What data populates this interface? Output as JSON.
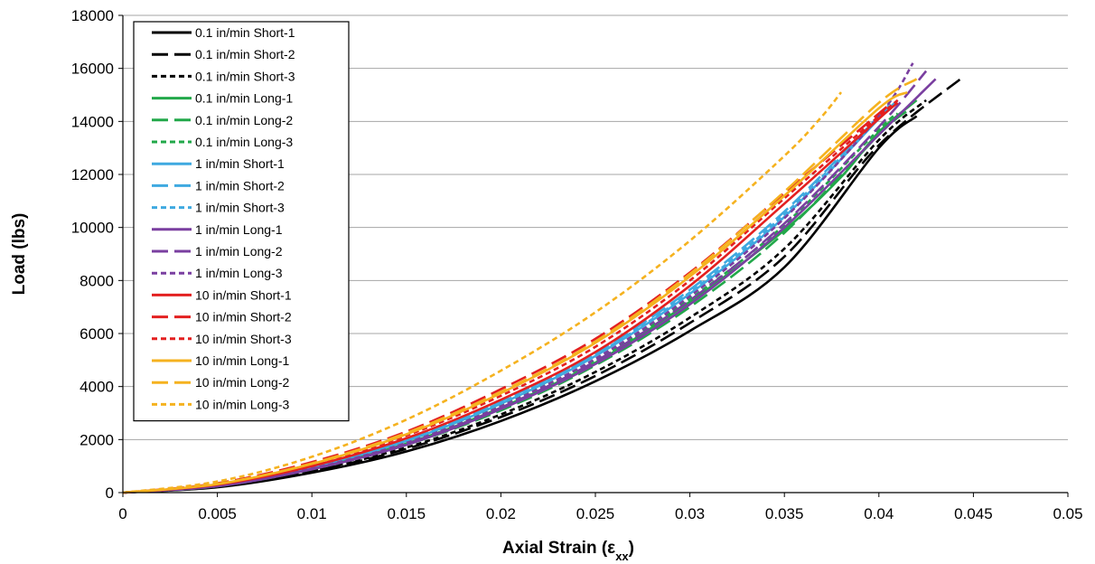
{
  "chart_data": {
    "type": "line",
    "title": "",
    "xlabel": "Axial Strain (ε",
    "xlabel_sub": "xx",
    "xlabel_close": ")",
    "ylabel": "Load (lbs)",
    "xlim": [
      0,
      0.05
    ],
    "ylim": [
      0,
      18000
    ],
    "xticks": [
      "0",
      "0.005",
      "0.01",
      "0.015",
      "0.02",
      "0.025",
      "0.03",
      "0.035",
      "0.04",
      "0.045",
      "0.05"
    ],
    "yticks": [
      "0",
      "2000",
      "4000",
      "6000",
      "8000",
      "10000",
      "12000",
      "14000",
      "16000",
      "18000"
    ],
    "grid": "horizontal",
    "legend_position": "top-left",
    "series": [
      {
        "name": "0.1 in/min Short-1",
        "color": "#000000",
        "dash": "solid",
        "x": [
          0,
          0.005,
          0.01,
          0.015,
          0.02,
          0.025,
          0.03,
          0.035,
          0.04,
          0.042
        ],
        "y": [
          0,
          200,
          750,
          1550,
          2700,
          4200,
          6100,
          8500,
          13000,
          14200
        ]
      },
      {
        "name": "0.1 in/min Short-2",
        "color": "#000000",
        "dash": "long",
        "x": [
          0,
          0.005,
          0.01,
          0.015,
          0.02,
          0.025,
          0.03,
          0.035,
          0.04,
          0.0445
        ],
        "y": [
          0,
          220,
          800,
          1650,
          2850,
          4400,
          6400,
          8900,
          13100,
          15700
        ]
      },
      {
        "name": "0.1 in/min Short-3",
        "color": "#000000",
        "dash": "short",
        "x": [
          0,
          0.005,
          0.01,
          0.015,
          0.02,
          0.025,
          0.03,
          0.035,
          0.04,
          0.0425
        ],
        "y": [
          0,
          230,
          830,
          1700,
          2950,
          4550,
          6600,
          9200,
          13300,
          14800
        ]
      },
      {
        "name": "0.1 in/min Long-1",
        "color": "#22a84a",
        "dash": "solid",
        "x": [
          0,
          0.005,
          0.01,
          0.015,
          0.02,
          0.025,
          0.03,
          0.035,
          0.038,
          0.04,
          0.042
        ],
        "y": [
          0,
          250,
          900,
          1850,
          3200,
          4900,
          7200,
          9900,
          11900,
          13600,
          14800
        ]
      },
      {
        "name": "0.1 in/min Long-2",
        "color": "#22a84a",
        "dash": "long",
        "x": [
          0,
          0.005,
          0.01,
          0.015,
          0.02,
          0.025,
          0.03,
          0.035,
          0.04,
          0.0415
        ],
        "y": [
          0,
          240,
          880,
          1800,
          3100,
          4800,
          7000,
          9800,
          13500,
          14400
        ]
      },
      {
        "name": "0.1 in/min Long-3",
        "color": "#22a84a",
        "dash": "short",
        "x": [
          0,
          0.005,
          0.01,
          0.015,
          0.02,
          0.025,
          0.03,
          0.035,
          0.04,
          0.041
        ],
        "y": [
          0,
          260,
          930,
          1900,
          3300,
          5000,
          7300,
          10100,
          13700,
          14300
        ]
      },
      {
        "name": "1 in/min Short-1",
        "color": "#3fa9e0",
        "dash": "solid",
        "x": [
          0,
          0.005,
          0.01,
          0.015,
          0.02,
          0.025,
          0.03,
          0.035,
          0.04,
          0.041
        ],
        "y": [
          0,
          270,
          960,
          1950,
          3350,
          5150,
          7500,
          10400,
          14100,
          14800
        ]
      },
      {
        "name": "1 in/min Short-2",
        "color": "#3fa9e0",
        "dash": "long",
        "x": [
          0,
          0.005,
          0.01,
          0.015,
          0.02,
          0.025,
          0.03,
          0.035,
          0.04,
          0.0405
        ],
        "y": [
          0,
          280,
          980,
          2000,
          3450,
          5250,
          7650,
          10600,
          14200,
          14600
        ]
      },
      {
        "name": "1 in/min Short-3",
        "color": "#3fa9e0",
        "dash": "short",
        "x": [
          0,
          0.005,
          0.01,
          0.015,
          0.02,
          0.025,
          0.03,
          0.035,
          0.04,
          0.041
        ],
        "y": [
          0,
          275,
          970,
          1980,
          3400,
          5200,
          7550,
          10500,
          14150,
          14700
        ]
      },
      {
        "name": "1 in/min Long-1",
        "color": "#7a3fa0",
        "dash": "solid",
        "x": [
          0,
          0.005,
          0.01,
          0.015,
          0.02,
          0.025,
          0.03,
          0.035,
          0.04,
          0.043
        ],
        "y": [
          0,
          240,
          880,
          1800,
          3150,
          4850,
          7100,
          10000,
          13500,
          15600
        ]
      },
      {
        "name": "1 in/min Long-2",
        "color": "#7a3fa0",
        "dash": "long",
        "x": [
          0,
          0.005,
          0.01,
          0.015,
          0.02,
          0.025,
          0.03,
          0.035,
          0.04,
          0.0425
        ],
        "y": [
          0,
          245,
          890,
          1830,
          3200,
          4950,
          7250,
          10150,
          13800,
          15900
        ]
      },
      {
        "name": "1 in/min Long-3",
        "color": "#7a3fa0",
        "dash": "short",
        "x": [
          0,
          0.005,
          0.01,
          0.015,
          0.02,
          0.025,
          0.03,
          0.035,
          0.04,
          0.0418
        ],
        "y": [
          0,
          255,
          910,
          1870,
          3250,
          5050,
          7400,
          10350,
          14200,
          16200
        ]
      },
      {
        "name": "10 in/min Short-1",
        "color": "#e32020",
        "dash": "solid",
        "x": [
          0,
          0.005,
          0.01,
          0.015,
          0.02,
          0.025,
          0.03,
          0.035,
          0.04,
          0.041
        ],
        "y": [
          0,
          300,
          1000,
          2050,
          3500,
          5300,
          7800,
          10900,
          14100,
          14700
        ]
      },
      {
        "name": "10 in/min Short-2",
        "color": "#e32020",
        "dash": "long",
        "x": [
          0,
          0.005,
          0.01,
          0.015,
          0.02,
          0.025,
          0.03,
          0.035,
          0.04,
          0.0405
        ],
        "y": [
          0,
          350,
          1150,
          2300,
          3900,
          5800,
          8300,
          11300,
          14300,
          14600
        ]
      },
      {
        "name": "10 in/min Short-3",
        "color": "#e32020",
        "dash": "short",
        "x": [
          0,
          0.005,
          0.01,
          0.015,
          0.02,
          0.025,
          0.03,
          0.035,
          0.04,
          0.041
        ],
        "y": [
          0,
          310,
          1050,
          2150,
          3650,
          5500,
          8000,
          11100,
          14200,
          14800
        ]
      },
      {
        "name": "10 in/min Long-1",
        "color": "#f5b21f",
        "dash": "solid",
        "x": [
          0,
          0.005,
          0.01,
          0.015,
          0.02,
          0.025,
          0.03,
          0.035,
          0.04,
          0.0415
        ],
        "y": [
          0,
          320,
          1080,
          2200,
          3750,
          5650,
          8150,
          11200,
          14500,
          15100
        ]
      },
      {
        "name": "10 in/min Long-2",
        "color": "#f5b21f",
        "dash": "long",
        "x": [
          0,
          0.005,
          0.01,
          0.015,
          0.02,
          0.025,
          0.03,
          0.035,
          0.04,
          0.042
        ],
        "y": [
          0,
          330,
          1100,
          2250,
          3800,
          5700,
          8250,
          11350,
          14700,
          15600
        ]
      },
      {
        "name": "10 in/min Long-3",
        "color": "#f5b21f",
        "dash": "short",
        "x": [
          0,
          0.005,
          0.01,
          0.015,
          0.02,
          0.025,
          0.03,
          0.035,
          0.037,
          0.038
        ],
        "y": [
          0,
          420,
          1350,
          2750,
          4600,
          6800,
          9500,
          12700,
          14200,
          15100
        ]
      }
    ]
  }
}
